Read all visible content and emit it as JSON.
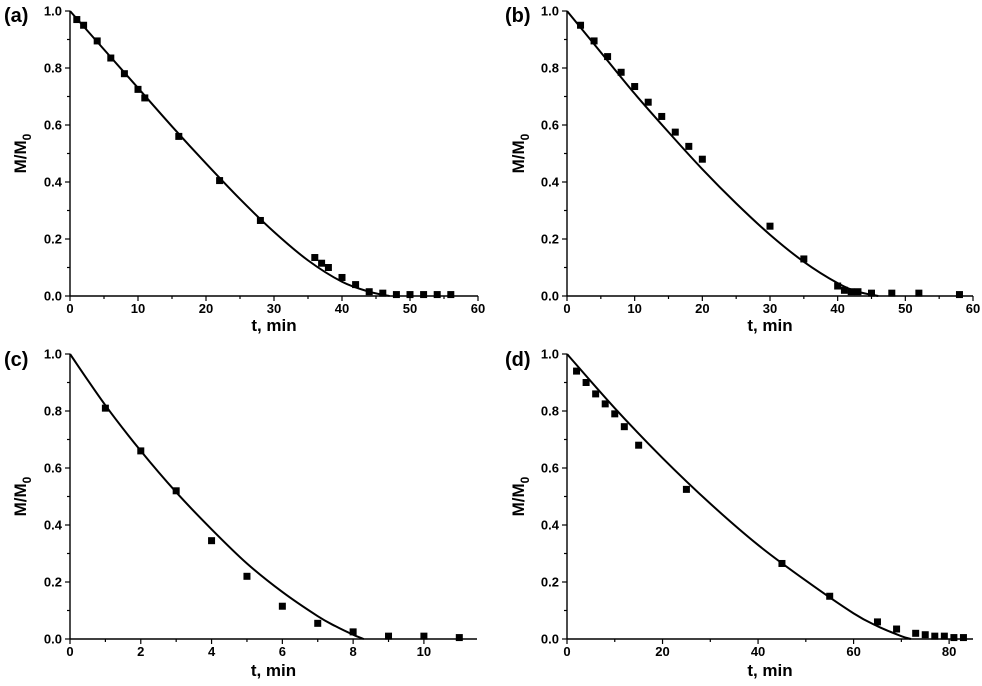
{
  "chart_data": [
    {
      "type": "scatter",
      "panel_label": "(a)",
      "xlabel": "t, min",
      "ylabel_main": "M/M",
      "ylabel_sub": "0",
      "xlim": [
        0,
        60
      ],
      "ylim": [
        0,
        1.0
      ],
      "xticks": [
        "0",
        "10",
        "20",
        "30",
        "40",
        "50",
        "60"
      ],
      "yticks": [
        "0.0",
        "0.2",
        "0.4",
        "0.6",
        "0.8",
        "1.0"
      ],
      "points": {
        "x": [
          1,
          2,
          4,
          6,
          8,
          10,
          11,
          16,
          22,
          28,
          36,
          37,
          38,
          40,
          42,
          44,
          46,
          48,
          50,
          52,
          54,
          56
        ],
        "y": [
          0.97,
          0.95,
          0.895,
          0.835,
          0.78,
          0.725,
          0.695,
          0.56,
          0.405,
          0.265,
          0.135,
          0.115,
          0.1,
          0.065,
          0.04,
          0.015,
          0.01,
          0.005,
          0.005,
          0.005,
          0.005,
          0.005
        ]
      },
      "fit": {
        "x": [
          0,
          5,
          10,
          15,
          20,
          25,
          30,
          35,
          40,
          44,
          47
        ],
        "y": [
          1.0,
          0.865,
          0.73,
          0.595,
          0.465,
          0.34,
          0.225,
          0.125,
          0.05,
          0.015,
          0.0
        ]
      }
    },
    {
      "type": "scatter",
      "panel_label": "(b)",
      "xlabel": "t, min",
      "ylabel_main": "M/M",
      "ylabel_sub": "0",
      "xlim": [
        0,
        60
      ],
      "ylim": [
        0,
        1.0
      ],
      "xticks": [
        "0",
        "10",
        "20",
        "30",
        "40",
        "50",
        "60"
      ],
      "yticks": [
        "0.0",
        "0.2",
        "0.4",
        "0.6",
        "0.8",
        "1.0"
      ],
      "points": {
        "x": [
          2,
          4,
          6,
          8,
          10,
          12,
          14,
          16,
          18,
          20,
          30,
          35,
          40,
          41,
          42,
          43,
          45,
          48,
          52,
          58
        ],
        "y": [
          0.95,
          0.895,
          0.84,
          0.785,
          0.735,
          0.68,
          0.63,
          0.575,
          0.525,
          0.48,
          0.245,
          0.13,
          0.035,
          0.02,
          0.015,
          0.015,
          0.01,
          0.01,
          0.01,
          0.005
        ]
      },
      "fit": {
        "x": [
          0,
          5,
          10,
          15,
          20,
          25,
          30,
          35,
          40,
          43,
          46
        ],
        "y": [
          1.0,
          0.855,
          0.71,
          0.575,
          0.445,
          0.325,
          0.215,
          0.12,
          0.045,
          0.015,
          0.0
        ]
      }
    },
    {
      "type": "scatter",
      "panel_label": "(c)",
      "xlabel": "t, min",
      "ylabel_main": "M/M",
      "ylabel_sub": "0",
      "xlim": [
        0,
        11.5
      ],
      "ylim": [
        0,
        1.0
      ],
      "xticks": [
        "0",
        "2",
        "4",
        "6",
        "8",
        "10"
      ],
      "xtick_values": [
        0,
        2,
        4,
        6,
        8,
        10
      ],
      "yticks": [
        "0.0",
        "0.2",
        "0.4",
        "0.6",
        "0.8",
        "1.0"
      ],
      "points": {
        "x": [
          1,
          2,
          3,
          4,
          5,
          6,
          7,
          8,
          9,
          10,
          11
        ],
        "y": [
          0.81,
          0.66,
          0.52,
          0.345,
          0.22,
          0.115,
          0.055,
          0.025,
          0.01,
          0.01,
          0.005
        ]
      },
      "fit": {
        "x": [
          0,
          1,
          2,
          3,
          4,
          5,
          6,
          7,
          7.5,
          8,
          8.3
        ],
        "y": [
          1.0,
          0.82,
          0.66,
          0.515,
          0.385,
          0.265,
          0.165,
          0.08,
          0.045,
          0.015,
          0.0
        ]
      }
    },
    {
      "type": "scatter",
      "panel_label": "(d)",
      "xlabel": "t, min",
      "ylabel_main": "M/M",
      "ylabel_sub": "0",
      "xlim": [
        0,
        85
      ],
      "ylim": [
        0,
        1.0
      ],
      "xticks": [
        "0",
        "20",
        "40",
        "60",
        "80"
      ],
      "xtick_values": [
        0,
        20,
        40,
        60,
        80
      ],
      "yticks": [
        "0.0",
        "0.2",
        "0.4",
        "0.6",
        "0.8",
        "1.0"
      ],
      "points": {
        "x": [
          2,
          4,
          6,
          8,
          10,
          12,
          15,
          25,
          45,
          55,
          65,
          69,
          73,
          75,
          77,
          79,
          81,
          83
        ],
        "y": [
          0.94,
          0.9,
          0.86,
          0.825,
          0.79,
          0.745,
          0.68,
          0.525,
          0.265,
          0.15,
          0.06,
          0.035,
          0.02,
          0.015,
          0.01,
          0.01,
          0.005,
          0.005
        ]
      },
      "fit": {
        "x": [
          0,
          10,
          20,
          30,
          40,
          50,
          60,
          65,
          70,
          72
        ],
        "y": [
          1.0,
          0.81,
          0.635,
          0.475,
          0.33,
          0.205,
          0.09,
          0.045,
          0.01,
          0.0
        ]
      }
    }
  ]
}
